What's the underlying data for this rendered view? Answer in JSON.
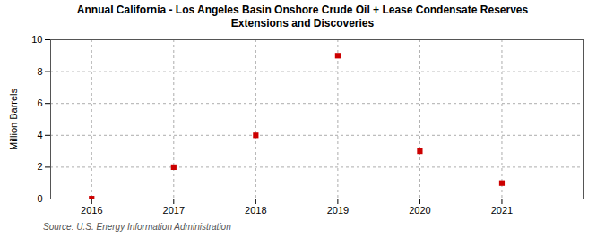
{
  "chart_data": {
    "type": "scatter",
    "title": "Annual California - Los Angeles Basin Onshore Crude Oil + Lease Condensate Reserves",
    "subtitle": "Extensions and Discoveries",
    "ylabel": "Million Barrels",
    "source": "Source: U.S. Energy Information Administration",
    "x": [
      2016,
      2017,
      2018,
      2019,
      2020,
      2021
    ],
    "values": [
      0.02,
      2,
      4,
      9,
      3,
      1
    ],
    "color": "#cc0000",
    "marker": "square",
    "xlim": [
      2015.5,
      2022.0
    ],
    "ylim": [
      0,
      10
    ],
    "xticks": [
      2016,
      2017,
      2018,
      2019,
      2020,
      2021
    ],
    "yticks": [
      0,
      2,
      4,
      6,
      8,
      10
    ],
    "grid": true
  }
}
